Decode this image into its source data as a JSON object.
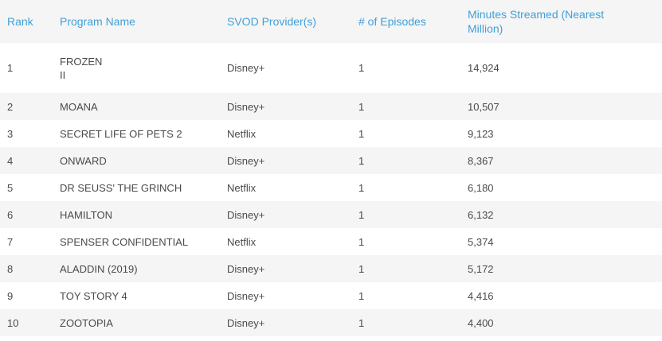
{
  "table": {
    "headers": {
      "rank": "Rank",
      "name": "Program Name",
      "provider": "SVOD Provider(s)",
      "episodes": "# of Episodes",
      "minutes": "Minutes Streamed (Nearest Million)"
    },
    "rows": [
      {
        "rank": "1",
        "name_line1": "FROZEN",
        "name_line2": "II",
        "provider": "Disney+",
        "episodes": "1",
        "minutes": "14,924"
      },
      {
        "rank": "2",
        "name": "MOANA",
        "provider": "Disney+",
        "episodes": "1",
        "minutes": "10,507"
      },
      {
        "rank": "3",
        "name": "SECRET LIFE OF PETS 2",
        "provider": "Netflix",
        "episodes": "1",
        "minutes": "9,123"
      },
      {
        "rank": "4",
        "name": "ONWARD",
        "provider": "Disney+",
        "episodes": "1",
        "minutes": "8,367"
      },
      {
        "rank": "5",
        "name": "DR SEUSS' THE GRINCH",
        "provider": "Netflix",
        "episodes": "1",
        "minutes": "6,180"
      },
      {
        "rank": "6",
        "name": "HAMILTON",
        "provider": "Disney+",
        "episodes": "1",
        "minutes": "6,132"
      },
      {
        "rank": "7",
        "name": "SPENSER CONFIDENTIAL",
        "provider": "Netflix",
        "episodes": "1",
        "minutes": "5,374"
      },
      {
        "rank": "8",
        "name": "ALADDIN (2019)",
        "provider": "Disney+",
        "episodes": "1",
        "minutes": "5,172"
      },
      {
        "rank": "9",
        "name": "TOY STORY 4",
        "provider": "Disney+",
        "episodes": "1",
        "minutes": "4,416"
      },
      {
        "rank": "10",
        "name": "ZOOTOPIA",
        "provider": "Disney+",
        "episodes": "1",
        "minutes": "4,400"
      }
    ]
  },
  "colors": {
    "header_text": "#3fa0d8",
    "body_text": "#4a4a4a",
    "stripe": "#f5f5f5",
    "background": "#ffffff"
  }
}
